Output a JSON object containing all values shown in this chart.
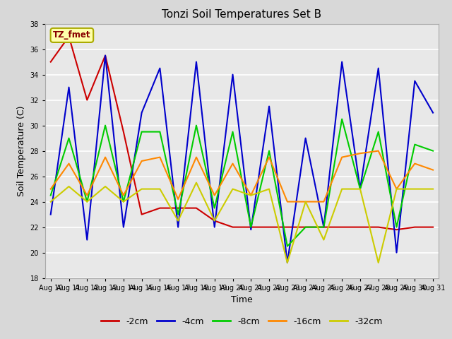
{
  "title": "Tonzi Soil Temperatures Set B",
  "xlabel": "Time",
  "ylabel": "Soil Temperature (C)",
  "ylim": [
    18,
    38
  ],
  "yticks": [
    18,
    20,
    22,
    24,
    26,
    28,
    30,
    32,
    34,
    36,
    38
  ],
  "days": [
    "Aug 10",
    "Aug 11",
    "Aug 12",
    "Aug 13",
    "Aug 14",
    "Aug 15",
    "Aug 16",
    "Aug 17",
    "Aug 18",
    "Aug 19",
    "Aug 20",
    "Aug 21",
    "Aug 22",
    "Aug 23",
    "Aug 24",
    "Aug 25",
    "Aug 26",
    "Aug 27",
    "Aug 28",
    "Aug 29",
    "Aug 30",
    "Aug 31"
  ],
  "x": [
    0,
    1,
    2,
    3,
    4,
    5,
    6,
    7,
    8,
    9,
    10,
    11,
    12,
    13,
    14,
    15,
    16,
    17,
    18,
    19,
    20,
    21
  ],
  "series": {
    "neg2cm": {
      "label": "-2cm",
      "color": "#cc0000",
      "data": [
        35.0,
        37.0,
        32.0,
        35.5,
        29.5,
        23.0,
        23.5,
        23.5,
        23.5,
        22.5,
        22.0,
        22.0,
        22.0,
        22.0,
        22.0,
        22.0,
        22.0,
        22.0,
        22.0,
        21.8,
        22.0,
        22.0
      ]
    },
    "neg4cm": {
      "label": "-4cm",
      "color": "#0000cc",
      "data": [
        23.0,
        33.0,
        21.0,
        35.5,
        22.0,
        31.0,
        34.5,
        22.0,
        35.0,
        22.0,
        34.0,
        21.8,
        31.5,
        19.2,
        29.0,
        22.0,
        35.0,
        25.0,
        34.5,
        20.0,
        33.5,
        31.0
      ]
    },
    "neg8cm": {
      "label": "-8cm",
      "color": "#00cc00",
      "data": [
        24.5,
        29.0,
        24.0,
        30.0,
        24.0,
        29.5,
        29.5,
        23.0,
        30.0,
        23.5,
        29.5,
        22.0,
        28.0,
        20.5,
        22.0,
        22.0,
        30.5,
        25.0,
        29.5,
        22.0,
        28.5,
        28.0
      ]
    },
    "neg16cm": {
      "label": "-16cm",
      "color": "#ff8800",
      "data": [
        25.0,
        27.0,
        24.5,
        27.5,
        24.5,
        27.2,
        27.5,
        24.2,
        27.5,
        24.5,
        27.0,
        24.5,
        27.5,
        24.0,
        24.0,
        24.0,
        27.5,
        27.8,
        28.0,
        25.0,
        27.0,
        26.5
      ]
    },
    "neg32cm": {
      "label": "-32cm",
      "color": "#cccc00",
      "data": [
        24.0,
        25.2,
        24.0,
        25.2,
        24.0,
        25.0,
        25.0,
        22.5,
        25.5,
        22.5,
        25.0,
        24.5,
        25.0,
        19.2,
        24.0,
        21.0,
        25.0,
        25.0,
        19.2,
        25.0,
        25.0,
        25.0
      ]
    }
  },
  "annotation_label": "TZ_fmet",
  "annotation_color": "#880000",
  "annotation_bg": "#ffffaa",
  "annotation_edge": "#aaaa00",
  "fig_bg_color": "#d8d8d8",
  "plot_bg_color": "#e8e8e8",
  "grid_color": "#ffffff",
  "spine_color": "#aaaaaa"
}
